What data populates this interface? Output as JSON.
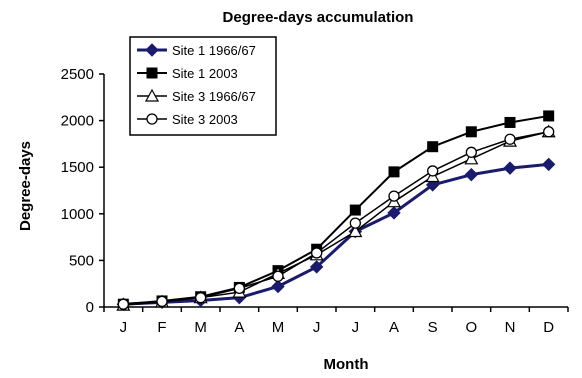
{
  "chart_data": {
    "type": "line",
    "title": "Degree-days accumulation",
    "xlabel": "Month",
    "ylabel": "Degree-days",
    "categories": [
      "J",
      "F",
      "M",
      "A",
      "M",
      "J",
      "J",
      "A",
      "S",
      "O",
      "N",
      "D"
    ],
    "ylim": [
      0,
      2500
    ],
    "yticks": [
      0,
      500,
      1000,
      1500,
      2000,
      2500
    ],
    "grid": false,
    "legend_position": "top-left",
    "series": [
      {
        "name": "Site 1 1966/67",
        "marker": "diamond-filled",
        "color": "#1a1a6e",
        "values": [
          30,
          50,
          70,
          100,
          220,
          430,
          810,
          1010,
          1310,
          1420,
          1490,
          1530
        ]
      },
      {
        "name": "Site 1 2003",
        "marker": "square-filled",
        "color": "#000000",
        "values": [
          30,
          65,
          110,
          210,
          390,
          620,
          1040,
          1450,
          1720,
          1880,
          1980,
          2050
        ]
      },
      {
        "name": "Site 3 1966/67",
        "marker": "triangle-open",
        "color": "#000000",
        "values": [
          20,
          55,
          100,
          160,
          360,
          560,
          810,
          1130,
          1400,
          1590,
          1780,
          1880
        ]
      },
      {
        "name": "Site 3 2003",
        "marker": "circle-open",
        "color": "#000000",
        "values": [
          30,
          60,
          100,
          200,
          330,
          580,
          900,
          1190,
          1460,
          1660,
          1800,
          1880
        ]
      }
    ]
  }
}
